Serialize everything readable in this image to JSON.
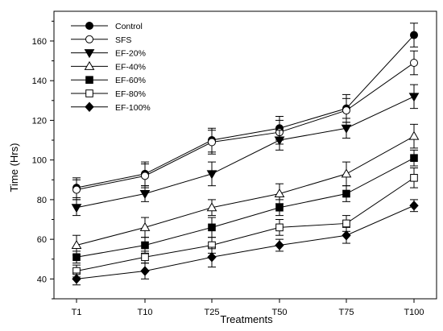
{
  "chart_data": {
    "type": "line",
    "xlabel": "Treatments",
    "ylabel": "Time (Hrs)",
    "categories": [
      "T1",
      "T10",
      "T25",
      "T50",
      "T75",
      "T100"
    ],
    "ylim": [
      30,
      175
    ],
    "yticks": [
      40,
      60,
      80,
      100,
      120,
      140,
      160
    ],
    "grid": false,
    "legend_position": "top-left",
    "series": [
      {
        "name": "Control",
        "marker": "circle",
        "fill": "filled",
        "values": [
          86,
          93,
          110,
          116,
          126,
          163
        ],
        "errors": [
          5,
          6,
          6,
          6,
          7,
          6
        ]
      },
      {
        "name": "SFS",
        "marker": "circle",
        "fill": "open",
        "values": [
          85,
          92,
          109,
          114,
          125,
          149
        ],
        "errors": [
          5,
          6,
          6,
          6,
          6,
          6
        ]
      },
      {
        "name": "EF-20%",
        "marker": "triangle-down",
        "fill": "filled",
        "values": [
          76,
          83,
          93,
          110,
          116,
          132
        ],
        "errors": [
          4,
          4,
          6,
          5,
          5,
          6
        ]
      },
      {
        "name": "EF-40%",
        "marker": "triangle-up",
        "fill": "open",
        "values": [
          57,
          66,
          76,
          83,
          93,
          112
        ],
        "errors": [
          5,
          5,
          4,
          5,
          6,
          6
        ]
      },
      {
        "name": "EF-60%",
        "marker": "square",
        "fill": "filled",
        "values": [
          51,
          57,
          66,
          76,
          83,
          101
        ],
        "errors": [
          3,
          4,
          5,
          4,
          4,
          4
        ]
      },
      {
        "name": "EF-80%",
        "marker": "square",
        "fill": "open",
        "values": [
          44,
          51,
          57,
          66,
          68,
          91
        ],
        "errors": [
          3,
          3,
          4,
          4,
          4,
          5
        ]
      },
      {
        "name": "EF-100%",
        "marker": "diamond",
        "fill": "filled",
        "values": [
          40,
          44,
          51,
          57,
          62,
          77
        ],
        "errors": [
          3,
          4,
          5,
          3,
          4,
          3
        ]
      }
    ]
  }
}
